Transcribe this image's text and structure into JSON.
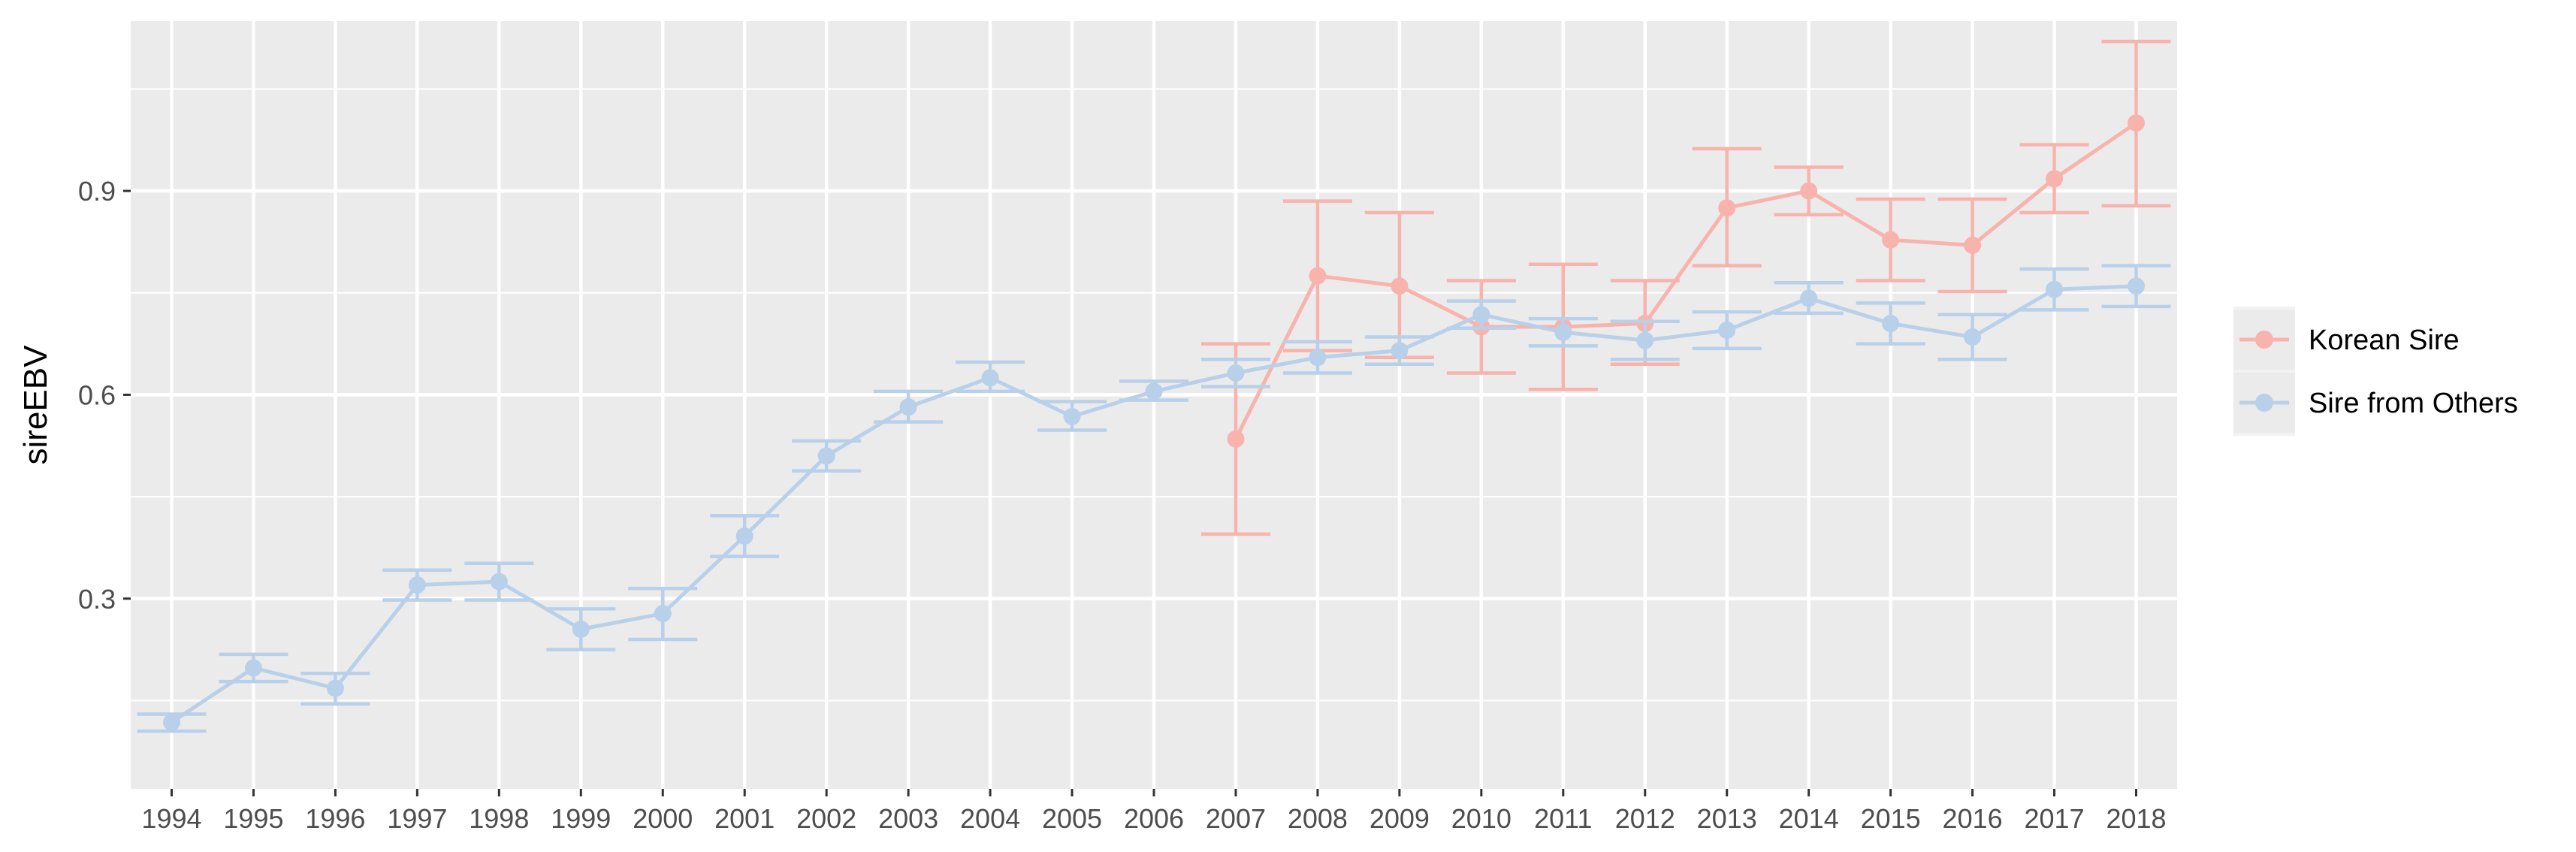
{
  "chart_data": {
    "type": "line",
    "title": "",
    "xlabel": "",
    "ylabel": "sireEBV",
    "x": [
      "1994",
      "1995",
      "1996",
      "1997",
      "1998",
      "1999",
      "2000",
      "2001",
      "2002",
      "2003",
      "2004",
      "2005",
      "2006",
      "2007",
      "2008",
      "2009",
      "2010",
      "2011",
      "2012",
      "2013",
      "2014",
      "2015",
      "2016",
      "2017",
      "2018"
    ],
    "ylim": [
      0.02,
      1.15
    ],
    "yticks": [
      0.3,
      0.6,
      0.9
    ],
    "ytick_labels": [
      "0.3",
      "0.6",
      "0.9"
    ],
    "grid": true,
    "legend_position": "right",
    "error_bars": true,
    "series": [
      {
        "name": "Korean Sire",
        "color": "#f8b3ad",
        "x": [
          "2007",
          "2008",
          "2009",
          "2010",
          "2011",
          "2012",
          "2013",
          "2014",
          "2015",
          "2016",
          "2017",
          "2018"
        ],
        "values": [
          0.535,
          0.775,
          0.76,
          0.7,
          0.7,
          0.705,
          0.875,
          0.9,
          0.828,
          0.82,
          0.918,
          1.0
        ],
        "lower": [
          0.395,
          0.665,
          0.655,
          0.632,
          0.608,
          0.645,
          0.79,
          0.865,
          0.768,
          0.752,
          0.868,
          0.878
        ],
        "upper": [
          0.675,
          0.885,
          0.868,
          0.768,
          0.792,
          0.768,
          0.962,
          0.935,
          0.888,
          0.888,
          0.968,
          1.12
        ]
      },
      {
        "name": "Sire from Others",
        "color": "#b8d0e9",
        "x": [
          "1994",
          "1995",
          "1996",
          "1997",
          "1998",
          "1999",
          "2000",
          "2001",
          "2002",
          "2003",
          "2004",
          "2005",
          "2006",
          "2007",
          "2008",
          "2009",
          "2010",
          "2011",
          "2012",
          "2013",
          "2014",
          "2015",
          "2016",
          "2017",
          "2018"
        ],
        "values": [
          0.118,
          0.198,
          0.168,
          0.32,
          0.325,
          0.255,
          0.278,
          0.392,
          0.51,
          0.582,
          0.625,
          0.568,
          0.605,
          0.632,
          0.655,
          0.665,
          0.718,
          0.692,
          0.68,
          0.695,
          0.742,
          0.705,
          0.685,
          0.755,
          0.76
        ],
        "lower": [
          0.105,
          0.178,
          0.145,
          0.298,
          0.298,
          0.225,
          0.24,
          0.362,
          0.488,
          0.56,
          0.605,
          0.548,
          0.592,
          0.612,
          0.632,
          0.645,
          0.698,
          0.672,
          0.652,
          0.668,
          0.72,
          0.675,
          0.652,
          0.725,
          0.73
        ],
        "upper": [
          0.13,
          0.218,
          0.19,
          0.342,
          0.352,
          0.285,
          0.315,
          0.422,
          0.532,
          0.605,
          0.648,
          0.59,
          0.62,
          0.652,
          0.678,
          0.685,
          0.738,
          0.712,
          0.708,
          0.722,
          0.765,
          0.735,
          0.718,
          0.785,
          0.79
        ]
      }
    ]
  }
}
